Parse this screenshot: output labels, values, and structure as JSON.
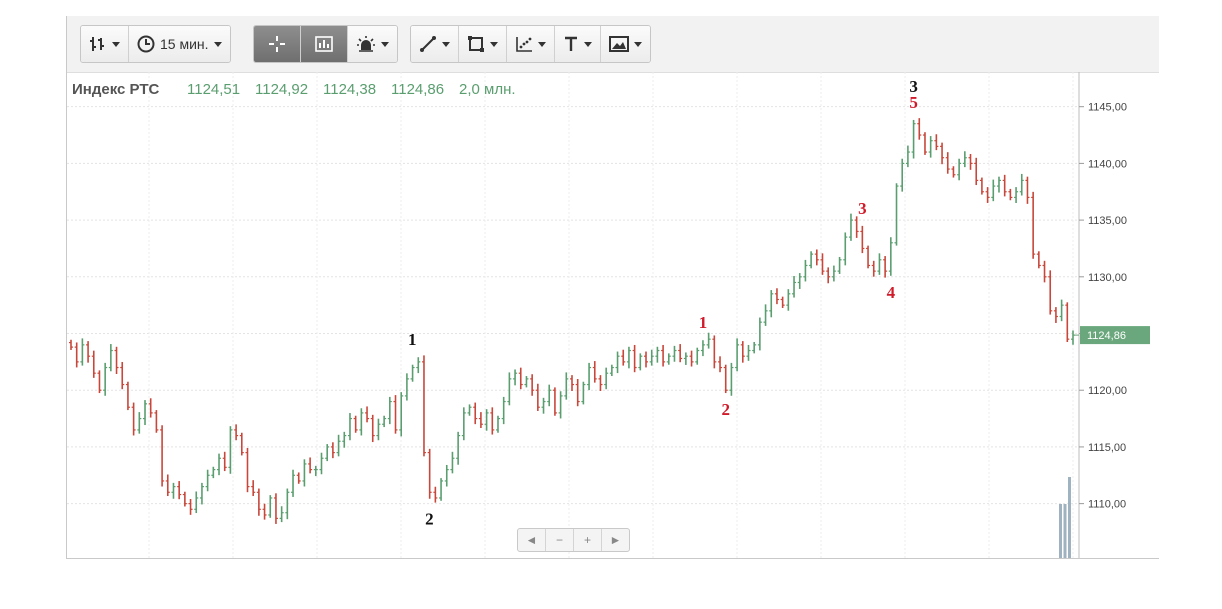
{
  "toolbar": {
    "interval_label": "15 мин.",
    "icons": [
      "bar-chart-type-icon",
      "clock-icon",
      "crosshair-icon",
      "indicator-panel-icon",
      "alert-icon",
      "line-tool-icon",
      "rectangle-tool-icon",
      "scatter-tool-icon",
      "text-tool-icon",
      "image-tool-icon"
    ]
  },
  "legend": {
    "name": "Индекс РТС",
    "open": "1124,51",
    "high": "1124,92",
    "low": "1124,38",
    "close": "1124,86",
    "volume": "2,0 млн."
  },
  "pager": {
    "prev": "◄",
    "minus": "−",
    "plus": "+",
    "next": "►"
  },
  "colors": {
    "up": "#5a9e6f",
    "down": "#c8473a",
    "price_tag": "#6aa77c",
    "wave_red": "#d11b2a",
    "wave_black": "#111111",
    "volume": "#9fb2c0"
  },
  "chart_data": {
    "type": "ohlc",
    "title": "Индекс РТС",
    "interval": "15 мин.",
    "ylim": [
      1106,
      1147
    ],
    "y_ticks": [
      "1110,00",
      "1115,00",
      "1120,00",
      "1125,00",
      "1130,00",
      "1135,00",
      "1140,00",
      "1145,00"
    ],
    "y_tick_values": [
      1110,
      1115,
      1120,
      1125,
      1130,
      1135,
      1140,
      1145
    ],
    "last_price_label": "1124,86",
    "last_price": 1124.86,
    "grid": true,
    "closes": [
      1123.8,
      1122.5,
      1124.0,
      1123.0,
      1121.5,
      1120.0,
      1122.0,
      1123.5,
      1122.0,
      1120.5,
      1118.5,
      1116.5,
      1117.5,
      1118.8,
      1118.0,
      1116.5,
      1112.0,
      1111.0,
      1111.5,
      1110.8,
      1110.0,
      1109.5,
      1110.5,
      1111.5,
      1112.5,
      1113.0,
      1114.0,
      1113.2,
      1116.5,
      1116.0,
      1114.5,
      1111.5,
      1111.0,
      1109.5,
      1109.0,
      1110.5,
      1108.7,
      1109.2,
      1111.0,
      1112.5,
      1112.0,
      1113.5,
      1113.0,
      1113.0,
      1114.0,
      1115.0,
      1114.5,
      1115.5,
      1116.0,
      1117.5,
      1116.5,
      1118.0,
      1117.5,
      1116.0,
      1117.0,
      1117.5,
      1119.0,
      1116.5,
      1119.5,
      1121.0,
      1122.0,
      1122.5,
      1114.5,
      1111.0,
      1110.5,
      1112.0,
      1113.0,
      1114.0,
      1116.0,
      1118.0,
      1118.5,
      1117.5,
      1117.0,
      1118.0,
      1116.5,
      1117.5,
      1119.0,
      1121.0,
      1121.5,
      1120.5,
      1121.0,
      1120.0,
      1118.5,
      1119.0,
      1120.0,
      1118.0,
      1119.5,
      1121.0,
      1120.5,
      1119.0,
      1120.5,
      1122.0,
      1121.0,
      1120.5,
      1121.5,
      1122.0,
      1123.0,
      1122.5,
      1123.5,
      1122.0,
      1123.0,
      1122.5,
      1123.0,
      1123.5,
      1122.5,
      1123.0,
      1123.5,
      1122.8,
      1123.0,
      1122.5,
      1123.5,
      1124.0,
      1124.5,
      1122.5,
      1122.0,
      1120.0,
      1122.0,
      1124.0,
      1123.0,
      1123.5,
      1124.0,
      1126.0,
      1127.0,
      1128.5,
      1128.0,
      1127.5,
      1128.5,
      1129.5,
      1130.0,
      1131.0,
      1132.0,
      1131.5,
      1130.5,
      1130.0,
      1130.5,
      1131.5,
      1133.5,
      1135.0,
      1134.0,
      1132.5,
      1131.0,
      1130.5,
      1131.5,
      1130.5,
      1133.0,
      1138.0,
      1140.0,
      1141.0,
      1143.5,
      1142.5,
      1141.0,
      1142.0,
      1141.5,
      1140.5,
      1139.5,
      1139.0,
      1140.0,
      1140.5,
      1140.0,
      1138.5,
      1137.5,
      1137.0,
      1138.0,
      1138.5,
      1137.5,
      1137.0,
      1137.5,
      1138.5,
      1137.0,
      1132.0,
      1131.0,
      1130.0,
      1127.0,
      1126.5,
      1127.5,
      1124.5,
      1124.86
    ],
    "volumes": [
      1.2,
      1.2,
      1.8
    ],
    "annotations": [
      {
        "text": "1",
        "color": "black",
        "near_index": 61,
        "position": "above"
      },
      {
        "text": "2",
        "color": "black",
        "near_index": 64,
        "position": "below"
      },
      {
        "text": "3",
        "color": "black",
        "near_index": 148,
        "position": "above"
      },
      {
        "text": "1",
        "color": "red",
        "near_index": 111,
        "position": "above"
      },
      {
        "text": "2",
        "color": "red",
        "near_index": 115,
        "position": "below"
      },
      {
        "text": "3",
        "color": "red",
        "near_index": 139,
        "position": "above"
      },
      {
        "text": "4",
        "color": "red",
        "near_index": 144,
        "position": "below"
      },
      {
        "text": "5",
        "color": "red",
        "near_index": 148,
        "position": "above"
      }
    ]
  }
}
